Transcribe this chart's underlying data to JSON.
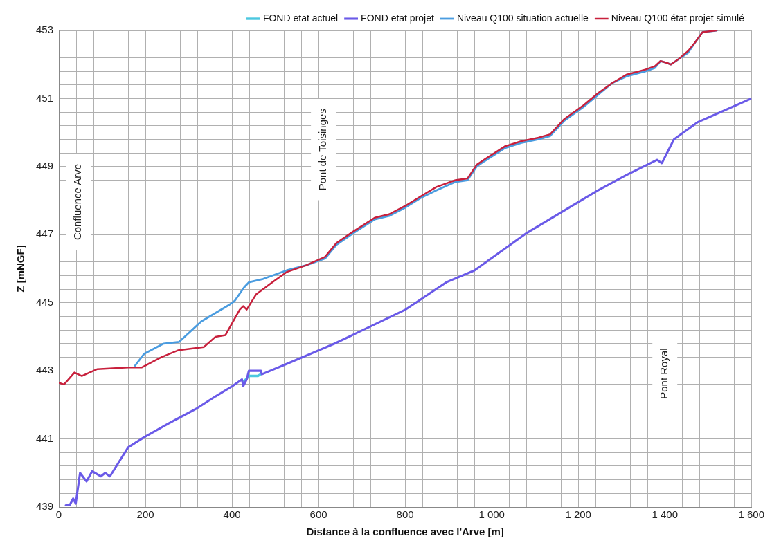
{
  "chart_data": {
    "type": "line",
    "xlabel": "Distance à la confluence avec l'Arve [m]",
    "ylabel": "Z [mNGF]",
    "xlim": [
      0,
      1600
    ],
    "ylim": [
      439,
      453
    ],
    "xticks": [
      0,
      {
        "value": 40,
        "label": null
      },
      {
        "value": 80,
        "label": null
      },
      {
        "value": 120,
        "label": null
      },
      {
        "value": 160,
        "label": null
      },
      200,
      {
        "value": 240,
        "label": null
      },
      {
        "value": 280,
        "label": null
      },
      {
        "value": 320,
        "label": null
      },
      {
        "value": 360,
        "label": null
      },
      400,
      {
        "value": 440,
        "label": null
      },
      {
        "value": 480,
        "label": null
      },
      {
        "value": 520,
        "label": null
      },
      {
        "value": 560,
        "label": null
      },
      600,
      {
        "value": 640,
        "label": null
      },
      {
        "value": 680,
        "label": null
      },
      {
        "value": 720,
        "label": null
      },
      {
        "value": 760,
        "label": null
      },
      800,
      {
        "value": 840,
        "label": null
      },
      {
        "value": 880,
        "label": null
      },
      {
        "value": 920,
        "label": null
      },
      {
        "value": 960,
        "label": null
      },
      {
        "value": 1000,
        "label": "1 000"
      },
      {
        "value": 1040,
        "label": null
      },
      {
        "value": 1080,
        "label": null
      },
      {
        "value": 1120,
        "label": null
      },
      {
        "value": 1160,
        "label": null
      },
      {
        "value": 1200,
        "label": "1 200"
      },
      {
        "value": 1240,
        "label": null
      },
      {
        "value": 1280,
        "label": null
      },
      {
        "value": 1320,
        "label": null
      },
      {
        "value": 1360,
        "label": null
      },
      {
        "value": 1400,
        "label": "1 400"
      },
      {
        "value": 1440,
        "label": null
      },
      {
        "value": 1480,
        "label": null
      },
      {
        "value": 1520,
        "label": null
      },
      {
        "value": 1560,
        "label": null
      },
      {
        "value": 1600,
        "label": "1 600"
      }
    ],
    "yticks": [
      439,
      {
        "value": 439.4,
        "label": null
      },
      {
        "value": 439.8,
        "label": null
      },
      {
        "value": 440.2,
        "label": null
      },
      {
        "value": 440.6,
        "label": null
      },
      441,
      {
        "value": 441.4,
        "label": null
      },
      {
        "value": 441.8,
        "label": null
      },
      {
        "value": 442.2,
        "label": null
      },
      {
        "value": 442.6,
        "label": null
      },
      443,
      {
        "value": 443.4,
        "label": null
      },
      {
        "value": 443.8,
        "label": null
      },
      {
        "value": 444.2,
        "label": null
      },
      {
        "value": 444.6,
        "label": null
      },
      445,
      {
        "value": 445.4,
        "label": null
      },
      {
        "value": 445.8,
        "label": null
      },
      {
        "value": 446.2,
        "label": null
      },
      {
        "value": 446.6,
        "label": null
      },
      447,
      {
        "value": 447.4,
        "label": null
      },
      {
        "value": 447.8,
        "label": null
      },
      {
        "value": 448.2,
        "label": null
      },
      {
        "value": 448.6,
        "label": null
      },
      449,
      {
        "value": 449.4,
        "label": null
      },
      {
        "value": 449.8,
        "label": null
      },
      {
        "value": 450.2,
        "label": null
      },
      {
        "value": 450.6,
        "label": null
      },
      451,
      {
        "value": 451.4,
        "label": null
      },
      {
        "value": 451.8,
        "label": null
      },
      {
        "value": 452.2,
        "label": null
      },
      {
        "value": 452.6,
        "label": null
      },
      453
    ],
    "grid": true,
    "legend": "top",
    "marker": "none",
    "line_style": "solid",
    "annotations": [
      "Confluence Arve",
      "Pont de Toisinges",
      "Pont Royal"
    ],
    "series": [
      {
        "name": "FOND etat actuel",
        "color": "#4cc8e0",
        "x": [
          428,
          440,
          460,
          466
        ],
        "values": [
          442.7,
          442.85,
          442.85,
          442.9
        ]
      },
      {
        "name": "FOND etat projet",
        "color": "#6a5ae8",
        "x": [
          16,
          25,
          33,
          39,
          49,
          64,
          77,
          97,
          107,
          118,
          160,
          197,
          253,
          319,
          362,
          401,
          423,
          426,
          434,
          439,
          467,
          469,
          526,
          637,
          801,
          895,
          960,
          1081,
          1245,
          1311,
          1382,
          1393,
          1421,
          1475,
          1600
        ],
        "values": [
          439.05,
          439.05,
          439.25,
          439.1,
          440,
          439.75,
          440.05,
          439.9,
          440,
          439.9,
          440.75,
          441.05,
          441.45,
          441.9,
          442.25,
          442.55,
          442.75,
          442.55,
          442.75,
          443,
          443,
          442.9,
          443.2,
          443.8,
          444.8,
          445.6,
          445.95,
          447.05,
          448.3,
          448.75,
          449.2,
          449.1,
          449.8,
          450.3,
          451
        ]
      },
      {
        "name": "Niveau Q100 situation actuelle",
        "color": "#4a9ce0",
        "x": [
          176,
          197,
          242,
          278,
          329,
          395,
          406,
          428,
          439,
          472,
          526,
          571,
          615,
          641,
          681,
          730,
          763,
          801,
          839,
          872,
          916,
          944,
          965,
          982,
          1031,
          1069,
          1108,
          1135,
          1168,
          1212,
          1245,
          1278,
          1311,
          1355,
          1377,
          1390,
          1404,
          1414,
          1431,
          1454,
          1470,
          1487,
          1520
        ],
        "values": [
          443.15,
          443.5,
          443.8,
          443.85,
          444.45,
          444.95,
          445.05,
          445.45,
          445.6,
          445.7,
          445.95,
          446.1,
          446.3,
          446.7,
          447.05,
          447.45,
          447.55,
          447.8,
          448.1,
          448.3,
          448.55,
          448.6,
          449,
          449.15,
          449.55,
          449.7,
          449.8,
          449.9,
          450.35,
          450.75,
          451.1,
          451.45,
          451.65,
          451.8,
          451.9,
          452.1,
          452.05,
          452,
          452.15,
          452.35,
          452.65,
          452.95,
          453
        ]
      },
      {
        "name": "Niveau Q100 état projet simulé",
        "color": "#c8203c",
        "x": [
          0,
          12,
          36,
          53,
          89,
          160,
          192,
          237,
          275,
          335,
          362,
          385,
          418,
          426,
          434,
          456,
          493,
          526,
          571,
          615,
          641,
          681,
          730,
          763,
          801,
          839,
          872,
          916,
          944,
          965,
          982,
          1031,
          1069,
          1108,
          1135,
          1168,
          1212,
          1245,
          1278,
          1311,
          1355,
          1377,
          1390,
          1404,
          1414,
          1431,
          1454,
          1470,
          1487,
          1520
        ],
        "values": [
          442.65,
          442.6,
          442.95,
          442.85,
          443.05,
          443.1,
          443.1,
          443.4,
          443.6,
          443.7,
          444,
          444.05,
          444.8,
          444.9,
          444.8,
          445.25,
          445.6,
          445.9,
          446.1,
          446.35,
          446.75,
          447.1,
          447.5,
          447.6,
          447.85,
          448.15,
          448.4,
          448.6,
          448.65,
          449.05,
          449.2,
          449.6,
          449.75,
          449.85,
          449.95,
          450.4,
          450.8,
          451.15,
          451.45,
          451.7,
          451.85,
          451.95,
          452.1,
          452.05,
          452,
          452.15,
          452.4,
          452.65,
          452.95,
          453
        ]
      }
    ]
  }
}
